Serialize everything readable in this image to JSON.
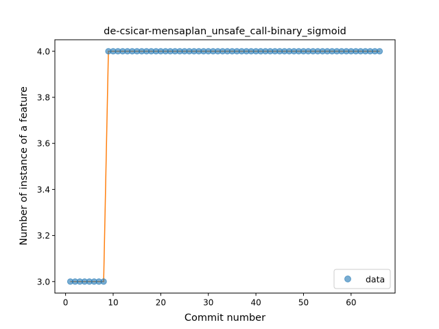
{
  "chart_data": {
    "type": "scatter",
    "title": "de-csicar-mensaplan_unsafe_call-binary_sigmoid",
    "xlabel": "Commit number",
    "ylabel": "Number of instance of a feature",
    "xlim": [
      -2.25,
      69.25
    ],
    "ylim": [
      2.95,
      4.05
    ],
    "xticks": [
      0,
      10,
      20,
      30,
      40,
      50,
      60
    ],
    "xtick_labels": [
      "0",
      "10",
      "20",
      "30",
      "40",
      "50",
      "60"
    ],
    "yticks": [
      3.0,
      3.2,
      3.4,
      3.6,
      3.8,
      4.0
    ],
    "ytick_labels": [
      "3.0",
      "3.2",
      "3.4",
      "3.6",
      "3.8",
      "4.0"
    ],
    "grid": false,
    "legend": {
      "position": "lower-right",
      "entries": [
        "data"
      ]
    },
    "series": [
      {
        "name": "data",
        "kind": "scatter",
        "color": "#1f77b4",
        "x": [
          1,
          2,
          3,
          4,
          5,
          6,
          7,
          8,
          9,
          10,
          11,
          12,
          13,
          14,
          15,
          16,
          17,
          18,
          19,
          20,
          21,
          22,
          23,
          24,
          25,
          26,
          27,
          28,
          29,
          30,
          31,
          32,
          33,
          34,
          35,
          36,
          37,
          38,
          39,
          40,
          41,
          42,
          43,
          44,
          45,
          46,
          47,
          48,
          49,
          50,
          51,
          52,
          53,
          54,
          55,
          56,
          57,
          58,
          59,
          60,
          61,
          62,
          63,
          64,
          65,
          66
        ],
        "y": [
          3,
          3,
          3,
          3,
          3,
          3,
          3,
          3,
          4,
          4,
          4,
          4,
          4,
          4,
          4,
          4,
          4,
          4,
          4,
          4,
          4,
          4,
          4,
          4,
          4,
          4,
          4,
          4,
          4,
          4,
          4,
          4,
          4,
          4,
          4,
          4,
          4,
          4,
          4,
          4,
          4,
          4,
          4,
          4,
          4,
          4,
          4,
          4,
          4,
          4,
          4,
          4,
          4,
          4,
          4,
          4,
          4,
          4,
          4,
          4,
          4,
          4,
          4,
          4,
          4,
          4
        ]
      },
      {
        "kind": "line",
        "color": "#ff7f0e",
        "x": [
          1,
          2,
          3,
          4,
          5,
          6,
          7,
          8,
          9,
          10,
          11,
          12,
          13,
          14,
          15,
          16,
          17,
          18,
          19,
          20,
          21,
          22,
          23,
          24,
          25,
          26,
          27,
          28,
          29,
          30,
          31,
          32,
          33,
          34,
          35,
          36,
          37,
          38,
          39,
          40,
          41,
          42,
          43,
          44,
          45,
          46,
          47,
          48,
          49,
          50,
          51,
          52,
          53,
          54,
          55,
          56,
          57,
          58,
          59,
          60,
          61,
          62,
          63,
          64,
          65,
          66
        ],
        "y": [
          3,
          3,
          3,
          3,
          3,
          3,
          3,
          3,
          4,
          4,
          4,
          4,
          4,
          4,
          4,
          4,
          4,
          4,
          4,
          4,
          4,
          4,
          4,
          4,
          4,
          4,
          4,
          4,
          4,
          4,
          4,
          4,
          4,
          4,
          4,
          4,
          4,
          4,
          4,
          4,
          4,
          4,
          4,
          4,
          4,
          4,
          4,
          4,
          4,
          4,
          4,
          4,
          4,
          4,
          4,
          4,
          4,
          4,
          4,
          4,
          4,
          4,
          4,
          4,
          4,
          4
        ]
      }
    ]
  }
}
